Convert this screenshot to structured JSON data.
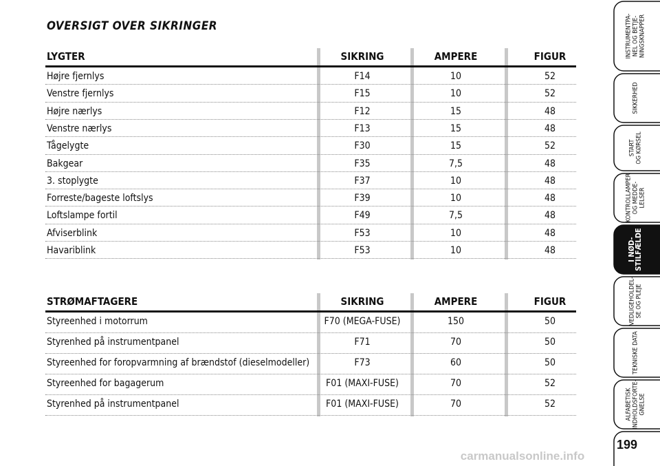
{
  "title": "OVERSIGT OVER SIKRINGER",
  "tables": [
    {
      "header": [
        "LYGTER",
        "SIKRING",
        "AMPERE",
        "FIGUR"
      ],
      "rows": [
        [
          "Højre fjernlys",
          "F14",
          "10",
          "52"
        ],
        [
          "Venstre fjernlys",
          "F15",
          "10",
          "52"
        ],
        [
          "Højre nærlys",
          "F12",
          "15",
          "48"
        ],
        [
          "Venstre nærlys",
          "F13",
          "15",
          "48"
        ],
        [
          "Tågelygte",
          "F30",
          "15",
          "52"
        ],
        [
          "Bakgear",
          "F35",
          "7,5",
          "48"
        ],
        [
          "3. stoplygte",
          "F37",
          "10",
          "48"
        ],
        [
          "Forreste/bageste loftslys",
          "F39",
          "10",
          "48"
        ],
        [
          "Loftslampe fortil",
          "F49",
          "7,5",
          "48"
        ],
        [
          "Afviserblink",
          "F53",
          "10",
          "48"
        ],
        [
          "Havariblink",
          "F53",
          "10",
          "48"
        ]
      ]
    },
    {
      "header": [
        "STRØMAFTAGERE",
        "SIKRING",
        "AMPERE",
        "FIGUR"
      ],
      "rows": [
        [
          "Styreenhed i motorrum",
          "F70 (MEGA-FUSE)",
          "150",
          "50"
        ],
        [
          "Styrenhed på instrumentpanel",
          "F71",
          "70",
          "50"
        ],
        [
          "Styreenhed for foropvarmning af brændstof (dieselmodeller)",
          "F73",
          "60",
          "50"
        ],
        [
          "Styreenhed for bagagerum",
          "F01 (MAXI-FUSE)",
          "70",
          "52"
        ],
        [
          "Styrenhed på instrumentpanel",
          "F01 (MAXI-FUSE)",
          "70",
          "52"
        ]
      ]
    }
  ],
  "tabs": [
    {
      "lines": [
        "INSTRUMENTPA-",
        "NEL OG BETJE-",
        "NINGSKNAPPER"
      ],
      "active": false
    },
    {
      "lines": [
        "SIKKERHED"
      ],
      "active": false
    },
    {
      "lines": [
        "START",
        "OG KØRSEL"
      ],
      "active": false
    },
    {
      "lines": [
        "KONTROLLAMPER",
        "OG MEDDE-",
        "LELSER"
      ],
      "active": false
    },
    {
      "lines": [
        "I NØD-",
        "STILFÆLDE"
      ],
      "active": true
    },
    {
      "lines": [
        "VEDLIGEHOLDEL-",
        "SE OG PLEJE"
      ],
      "active": false
    },
    {
      "lines": [
        "TEKNISKE DATA"
      ],
      "active": false
    },
    {
      "lines": [
        "ALFABETISK",
        "INDHOLDSFORTE-",
        "GNELSE"
      ],
      "active": false
    }
  ],
  "page_number": "199",
  "watermark": "carmanualsonline.info"
}
